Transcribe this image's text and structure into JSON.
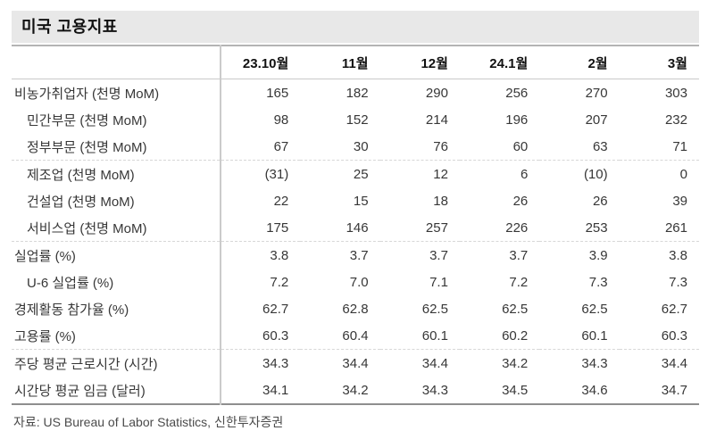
{
  "title": "미국 고용지표",
  "table": {
    "columns": [
      "",
      "23.10월",
      "11월",
      "12월",
      "24.1월",
      "2월",
      "3월"
    ],
    "rows": [
      {
        "label": "비농가취업자 (천명 MoM)",
        "indent": false,
        "separator_after": false,
        "values": [
          "165",
          "182",
          "290",
          "256",
          "270",
          "303"
        ]
      },
      {
        "label": "민간부문 (천명 MoM)",
        "indent": true,
        "separator_after": false,
        "values": [
          "98",
          "152",
          "214",
          "196",
          "207",
          "232"
        ]
      },
      {
        "label": "정부부문 (천명 MoM)",
        "indent": true,
        "separator_after": true,
        "values": [
          "67",
          "30",
          "76",
          "60",
          "63",
          "71"
        ]
      },
      {
        "label": "제조업 (천명 MoM)",
        "indent": true,
        "separator_after": false,
        "values": [
          "(31)",
          "25",
          "12",
          "6",
          "(10)",
          "0"
        ]
      },
      {
        "label": "건설업 (천명 MoM)",
        "indent": true,
        "separator_after": false,
        "values": [
          "22",
          "15",
          "18",
          "26",
          "26",
          "39"
        ]
      },
      {
        "label": "서비스업 (천명 MoM)",
        "indent": true,
        "separator_after": true,
        "values": [
          "175",
          "146",
          "257",
          "226",
          "253",
          "261"
        ]
      },
      {
        "label": "실업률 (%)",
        "indent": false,
        "separator_after": false,
        "values": [
          "3.8",
          "3.7",
          "3.7",
          "3.7",
          "3.9",
          "3.8"
        ]
      },
      {
        "label": "U-6 실업률 (%)",
        "indent": true,
        "separator_after": false,
        "values": [
          "7.2",
          "7.0",
          "7.1",
          "7.2",
          "7.3",
          "7.3"
        ]
      },
      {
        "label": "경제활동 참가율 (%)",
        "indent": false,
        "separator_after": false,
        "values": [
          "62.7",
          "62.8",
          "62.5",
          "62.5",
          "62.5",
          "62.7"
        ]
      },
      {
        "label": "고용률 (%)",
        "indent": false,
        "separator_after": true,
        "values": [
          "60.3",
          "60.4",
          "60.1",
          "60.2",
          "60.1",
          "60.3"
        ]
      },
      {
        "label": "주당 평균 근로시간 (시간)",
        "indent": false,
        "separator_after": false,
        "values": [
          "34.3",
          "34.4",
          "34.4",
          "34.2",
          "34.3",
          "34.4"
        ]
      },
      {
        "label": "시간당 평균 임금 (달러)",
        "indent": false,
        "separator_after": false,
        "values": [
          "34.1",
          "34.2",
          "34.3",
          "34.5",
          "34.6",
          "34.7"
        ]
      }
    ]
  },
  "footer": "자료: US Bureau of Labor Statistics, 신한투자증권",
  "colors": {
    "title_band_bg": "#e8e8e8",
    "table_top_border": "#b4b4b4",
    "table_bottom_border": "#8e8e8e",
    "header_rule": "#c9c9c9",
    "vertical_rule": "#cbcbcb",
    "dashed_rule": "#d7d7d7",
    "text": "#373737",
    "footer_text": "#4b4b4b"
  }
}
